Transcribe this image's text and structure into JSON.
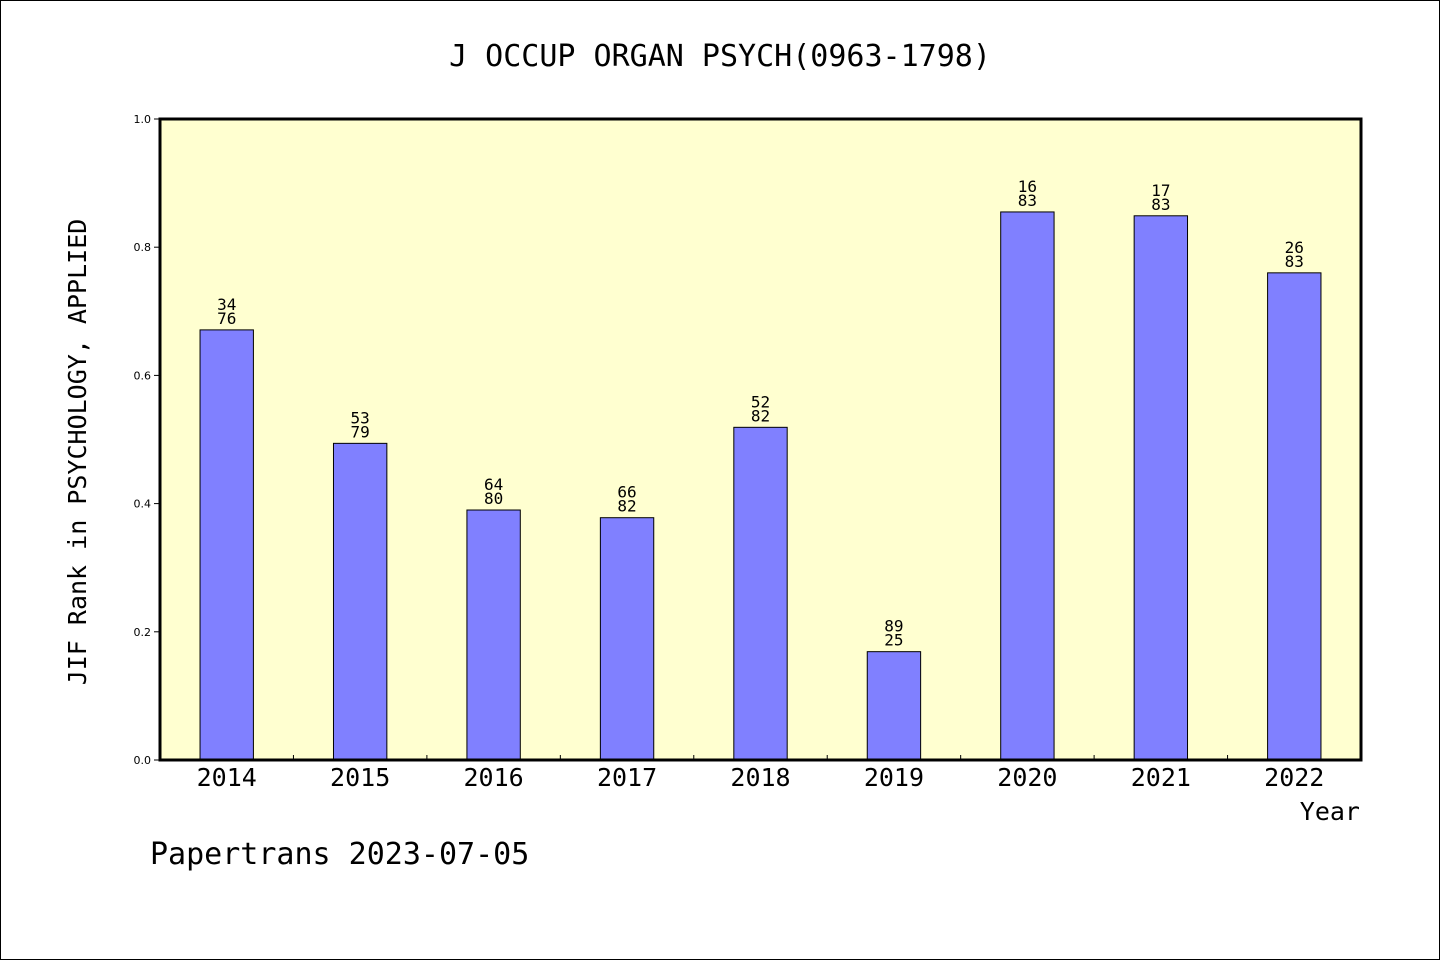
{
  "chart_data": {
    "type": "bar",
    "title": "J OCCUP ORGAN PSYCH(0963-1798)",
    "xlabel": "Year",
    "ylabel": "JIF Rank in PSYCHOLOGY, APPLIED",
    "ylim": [
      0,
      1
    ],
    "yticks": [
      "0.0",
      "0.2",
      "0.4",
      "0.6",
      "0.8",
      "1.0"
    ],
    "categories": [
      "2014",
      "2015",
      "2016",
      "2017",
      "2018",
      "2019",
      "2020",
      "2021",
      "2022"
    ],
    "values": [
      0.671,
      0.494,
      0.39,
      0.378,
      0.519,
      0.169,
      0.855,
      0.849,
      0.76
    ],
    "rank_labels": [
      [
        "34",
        "76"
      ],
      [
        "53",
        "79"
      ],
      [
        "64",
        "80"
      ],
      [
        "66",
        "82"
      ],
      [
        "52",
        "82"
      ],
      [
        "89",
        "25"
      ],
      [
        "16",
        "83"
      ],
      [
        "17",
        "83"
      ],
      [
        "26",
        "83"
      ]
    ],
    "grid": false,
    "colors": {
      "plot_background": "#ffffd0",
      "bar": "#8080ff"
    }
  },
  "footer": {
    "credit": "Papertrans 2023-07-05"
  }
}
